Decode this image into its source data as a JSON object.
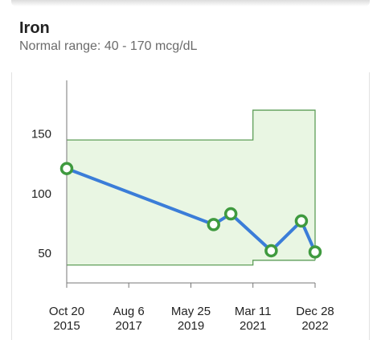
{
  "header": {
    "title": "Iron",
    "subtitle": "Normal range: 40 - 170 mcg/dL"
  },
  "colors": {
    "line": "#3b7dd8",
    "marker": "#3f9a3f",
    "range_fill": "#e9f6e3",
    "range_border": "#5e9e58",
    "axis": "#777777"
  },
  "chart_data": {
    "type": "line",
    "title": "",
    "xlabel": "",
    "ylabel": "",
    "ylim": [
      25,
      195
    ],
    "xlim": [
      "2015-10-20",
      "2022-12-28"
    ],
    "y_ticks": [
      {
        "value": 50,
        "label": "50"
      },
      {
        "value": 100,
        "label": "100"
      },
      {
        "value": 150,
        "label": "150"
      }
    ],
    "x_ticks": [
      {
        "date": "2015-10-20",
        "line1": "Oct 20",
        "line2": "2015"
      },
      {
        "date": "2017-08-06",
        "line1": "Aug 6",
        "line2": "2017"
      },
      {
        "date": "2019-05-25",
        "line1": "May 25",
        "line2": "2019"
      },
      {
        "date": "2021-03-11",
        "line1": "Mar 11",
        "line2": "2021"
      },
      {
        "date": "2022-12-28",
        "line1": "Dec 28",
        "line2": "2022"
      }
    ],
    "reference_band": [
      {
        "from": "2015-10-20",
        "to": "2021-03-11",
        "low": 40,
        "high": 145
      },
      {
        "from": "2021-03-11",
        "to": "2022-12-28",
        "low": 44,
        "high": 170
      }
    ],
    "series": [
      {
        "points": [
          {
            "x": "2015-10-20",
            "y": 121
          },
          {
            "x": "2020-01-20",
            "y": 74
          },
          {
            "x": "2020-07-20",
            "y": 83
          },
          {
            "x": "2021-09-20",
            "y": 52
          },
          {
            "x": "2022-08-05",
            "y": 77
          },
          {
            "x": "2022-12-28",
            "y": 51
          }
        ]
      }
    ]
  }
}
